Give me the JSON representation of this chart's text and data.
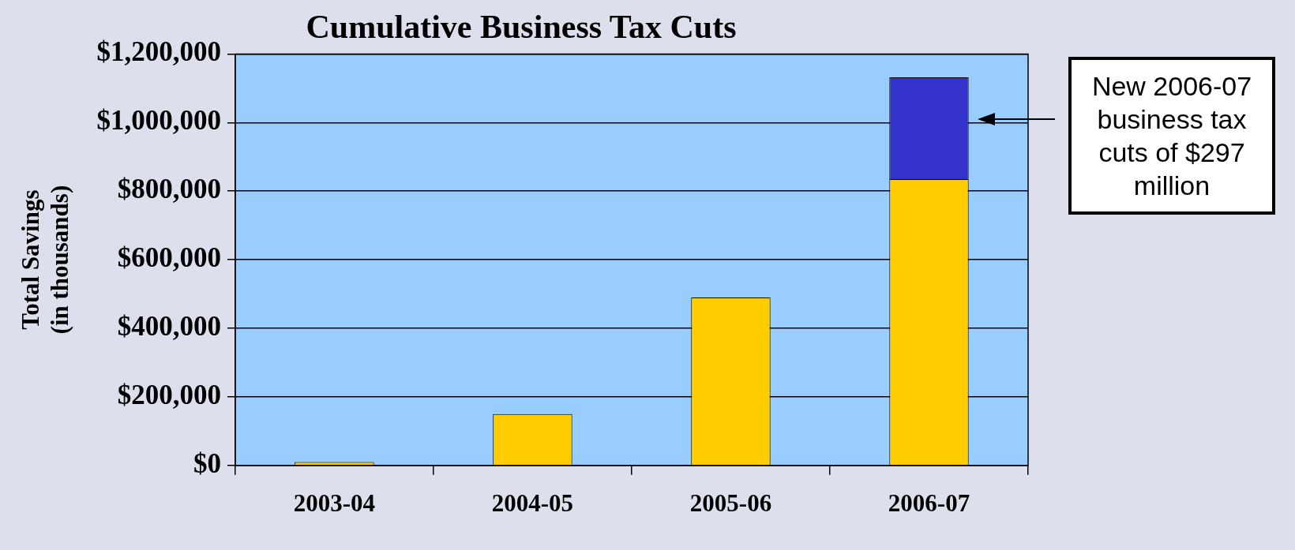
{
  "chart_data": {
    "type": "bar",
    "title": "Cumulative Business Tax Cuts",
    "ylabel": "Total Savings\n(in thousands)",
    "categories": [
      "2003-04",
      "2004-05",
      "2005-06",
      "2006-07"
    ],
    "stacked": true,
    "series": [
      {
        "color": "#ffcc00",
        "values": [
          10000,
          150000,
          490000,
          835000
        ]
      },
      {
        "color": "#3333cc",
        "values": [
          null,
          null,
          null,
          297000
        ]
      }
    ],
    "ylim": [
      0,
      1200000
    ],
    "yticks": [
      {
        "value": 0,
        "label": "$0"
      },
      {
        "value": 200000,
        "label": "$200,000"
      },
      {
        "value": 400000,
        "label": "$400,000"
      },
      {
        "value": 600000,
        "label": "$600,000"
      },
      {
        "value": 800000,
        "label": "$800,000"
      },
      {
        "value": 1000000,
        "label": "$1,000,000"
      },
      {
        "value": 1200000,
        "label": "$1,200,000"
      }
    ],
    "grid": "y",
    "legend": false,
    "annotations": [
      "New 2006-07 business tax cuts of $297 million"
    ]
  }
}
